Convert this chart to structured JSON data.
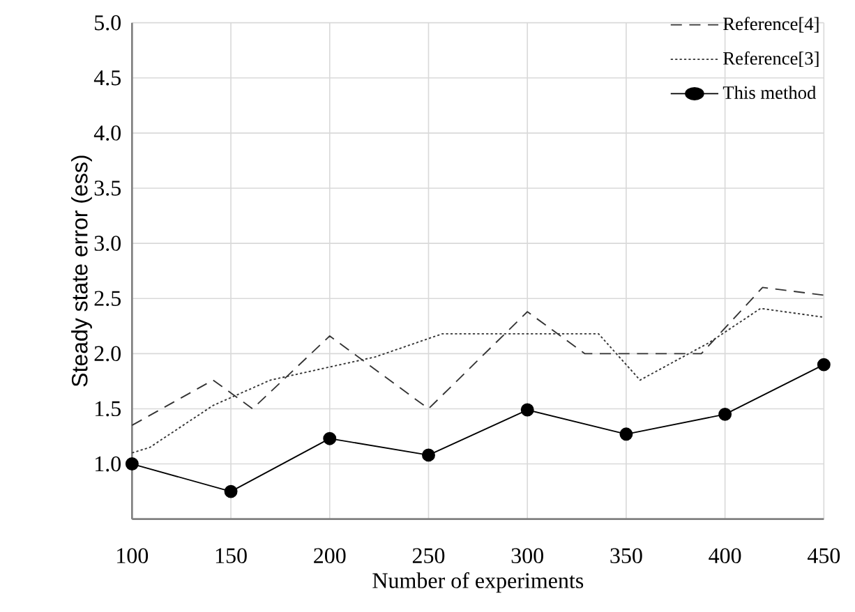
{
  "chart_data": {
    "type": "line",
    "xlabel": "Number of experiments",
    "ylabel": "Steady state error (ess)",
    "xlim": [
      100,
      450
    ],
    "xticks": [
      100,
      150,
      200,
      250,
      300,
      350,
      400,
      450
    ],
    "ylim": [
      0.5,
      5.0
    ],
    "yticks": [
      {
        "value": 1,
        "label": "1.0"
      },
      {
        "value": 1.5,
        "label": "1.5"
      },
      {
        "value": 2,
        "label": "2.0"
      },
      {
        "value": 2.5,
        "label": "2.5"
      },
      {
        "value": 3,
        "label": "3.0"
      },
      {
        "value": 3.5,
        "label": "3.5"
      },
      {
        "value": 4,
        "label": "4.0"
      },
      {
        "value": 4.5,
        "label": "4.5"
      },
      {
        "value": 5,
        "label": "5.0"
      }
    ],
    "grid": true,
    "legend": "top right",
    "series": [
      {
        "name": "Reference[4]",
        "color": "#333333",
        "line_style": "dashed",
        "marker": "none",
        "x": [
          100,
          141,
          161,
          200,
          250,
          300,
          329,
          388,
          419,
          450
        ],
        "values": [
          1.35,
          1.76,
          1.5,
          2.16,
          1.5,
          2.38,
          2.0,
          2.0,
          2.6,
          2.53
        ]
      },
      {
        "name": "Reference[3]",
        "color": "#333333",
        "line_style": "dotted",
        "marker": "none",
        "x": [
          100,
          109,
          141,
          170,
          223,
          257,
          336,
          357,
          392,
          418,
          450
        ],
        "values": [
          1.1,
          1.15,
          1.53,
          1.76,
          1.97,
          2.18,
          2.18,
          1.76,
          2.1,
          2.41,
          2.33
        ]
      },
      {
        "name": "This method",
        "color": "#000000",
        "line_style": "solid",
        "marker": "circle",
        "x": [
          100,
          150,
          200,
          250,
          300,
          350,
          400,
          450
        ],
        "values": [
          1.0,
          0.75,
          1.23,
          1.08,
          1.49,
          1.27,
          1.45,
          1.9
        ]
      }
    ]
  }
}
